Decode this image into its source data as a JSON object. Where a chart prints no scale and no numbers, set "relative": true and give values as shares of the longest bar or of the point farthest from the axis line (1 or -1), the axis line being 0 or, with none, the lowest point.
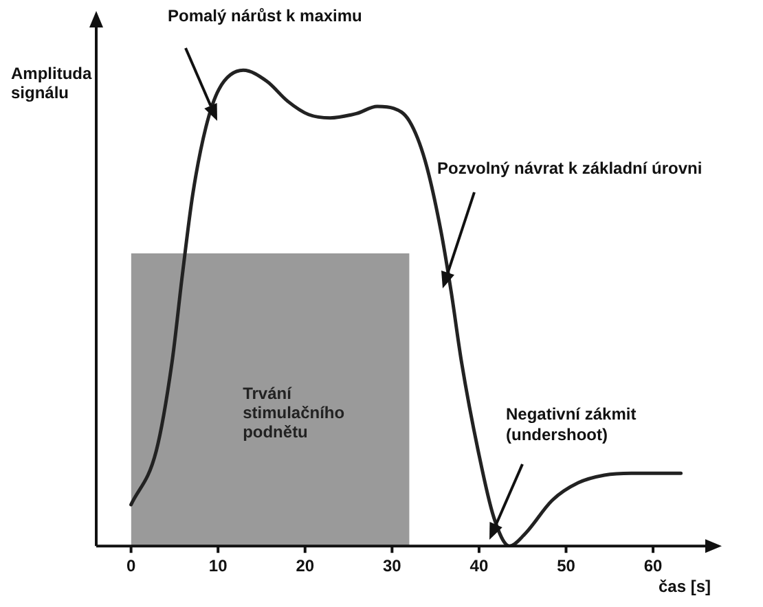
{
  "chart_data": {
    "type": "line",
    "relative": true,
    "xlabel": "čas [s]",
    "ylabel": "Amplituda signálu",
    "xlim": [
      -4,
      66
    ],
    "xticks": [
      0,
      10,
      20,
      30,
      40,
      50,
      60
    ],
    "grid": false,
    "legend": false,
    "marker": "none",
    "line_style": "solid",
    "series": [
      {
        "type": "area",
        "name": "Trvání stimulačního podnětu",
        "color": "#9a9a9a",
        "x": [
          0,
          32
        ],
        "values": [
          0.615,
          0.615
        ]
      },
      {
        "color": "#222222",
        "x": [
          0,
          2.9,
          4.7,
          5.9,
          7.1,
          8.6,
          10.1,
          12.9,
          15.6,
          18,
          20.4,
          22.9,
          25.9,
          28.3,
          30.2,
          32,
          33.8,
          35.6,
          36.8,
          38,
          39.9,
          41.7,
          43.5,
          45.3,
          48.4,
          51.4,
          54.4,
          57.5,
          63.2
        ],
        "values": [
          0.087,
          0.2,
          0.385,
          0.57,
          0.74,
          0.88,
          0.96,
          1,
          0.977,
          0.935,
          0.907,
          0.9,
          0.909,
          0.924,
          0.92,
          0.893,
          0.81,
          0.664,
          0.534,
          0.385,
          0.2,
          0.06,
          0,
          0.026,
          0.096,
          0.133,
          0.149,
          0.153,
          0.153
        ]
      }
    ],
    "annotations": [
      "Pomalý nárůst k maximu",
      "Pozvolný návrat k základní úrovni",
      "Negativní zákmit (undershoot)"
    ]
  }
}
